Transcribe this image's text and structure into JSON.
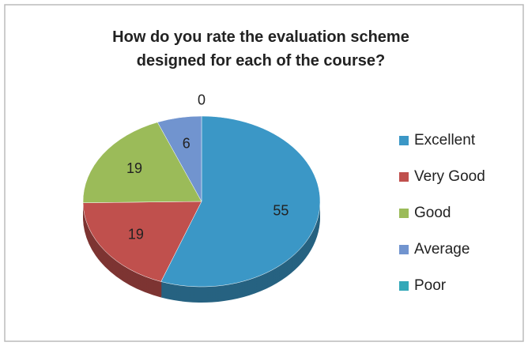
{
  "chart_data": {
    "type": "pie",
    "title": "How do you rate the evaluation scheme designed for each of the course?",
    "categories": [
      "Excellent",
      "Very Good",
      "Good",
      "Average",
      "Poor"
    ],
    "values": [
      55,
      19,
      19,
      6,
      0
    ],
    "colors": [
      "#3b97c6",
      "#c0504d",
      "#9bbb59",
      "#7194cf",
      "#33a8b8"
    ],
    "legend": "right"
  }
}
